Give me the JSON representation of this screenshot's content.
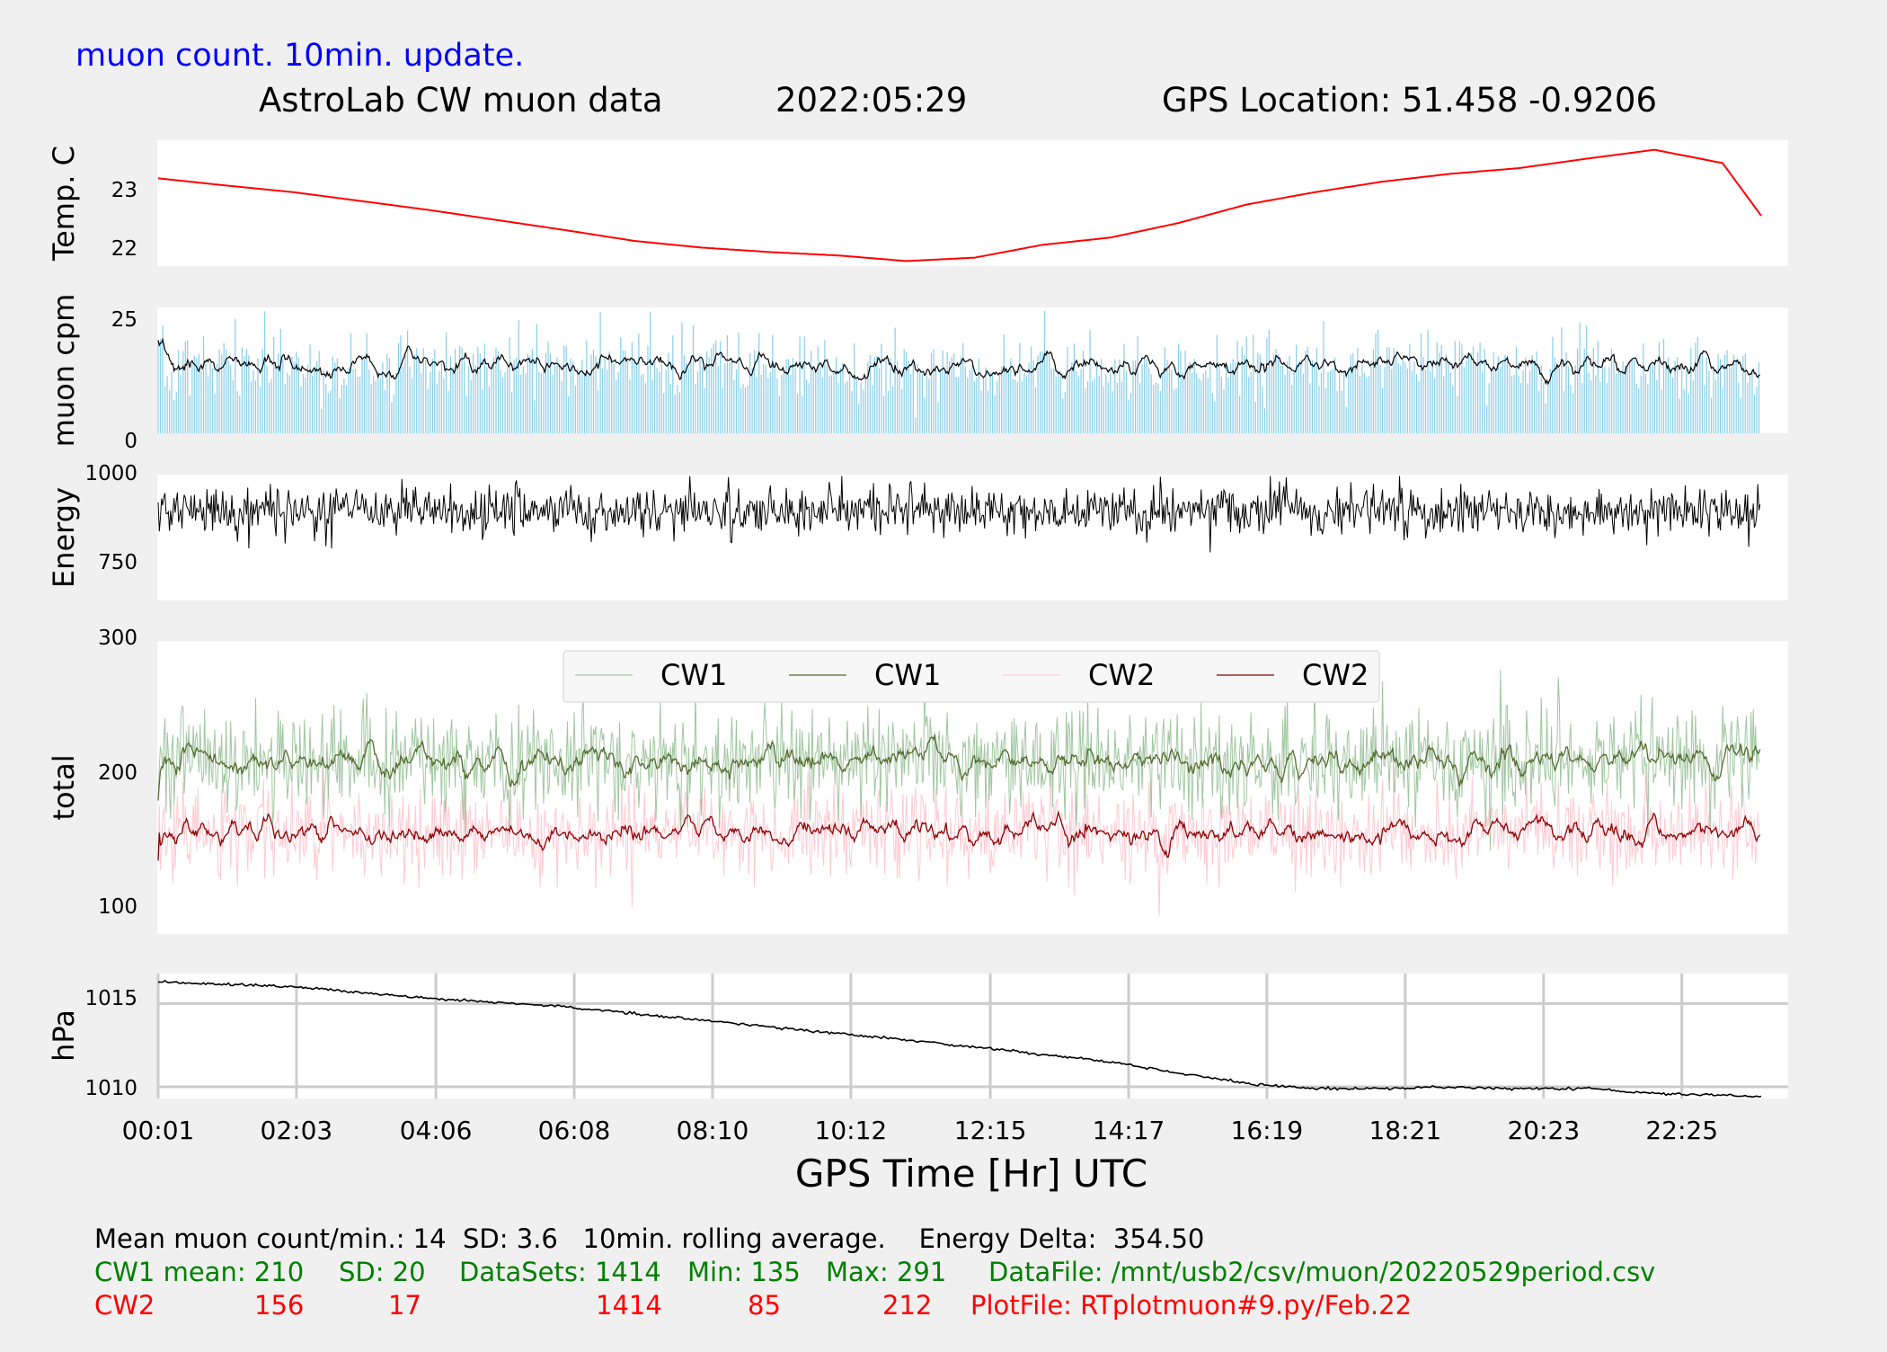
{
  "header": {
    "update_note": "muon count.  10min. update.",
    "title": "AstroLab CW muon data",
    "date": "2022:05:29",
    "location": "GPS Location: 51.458   -0.9206"
  },
  "xaxis": {
    "label": "GPS Time  [Hr] UTC",
    "ticks": [
      "00:01",
      "02:03",
      "04:06",
      "06:08",
      "08:10",
      "10:12",
      "12:15",
      "14:17",
      "16:19",
      "18:21",
      "20:23",
      "22:25"
    ]
  },
  "chart_data": [
    {
      "type": "line",
      "name": "temperature",
      "ylabel": "Temp. C",
      "ylim": [
        21.7,
        23.95
      ],
      "yticks": [
        "22",
        "23"
      ],
      "x_unit": "minutes since 00:01",
      "x": [
        0,
        60,
        120,
        180,
        240,
        300,
        360,
        420,
        480,
        540,
        600,
        660,
        720,
        780,
        840,
        900,
        960,
        1020,
        1080,
        1140,
        1200,
        1260,
        1320,
        1380,
        1414
      ],
      "values": [
        23.27,
        23.14,
        23.02,
        22.86,
        22.7,
        22.52,
        22.34,
        22.15,
        22.03,
        21.95,
        21.89,
        21.79,
        21.85,
        22.08,
        22.21,
        22.47,
        22.8,
        23.02,
        23.21,
        23.35,
        23.45,
        23.62,
        23.78,
        23.54,
        22.6
      ],
      "color": "#ff0000",
      "grid": false
    },
    {
      "type": "bar",
      "name": "muon-cpm",
      "ylabel": "muon cpm",
      "ylim": [
        0,
        26
      ],
      "yticks": [
        "0",
        "25"
      ],
      "mean": 14,
      "sd": 3.6,
      "count": 1414,
      "bar_color": "#87ceeb",
      "rolling_color": "#000000",
      "grid": false
    },
    {
      "type": "line",
      "name": "energy",
      "ylabel": "Energy",
      "ylim": [
        645,
        1005
      ],
      "yticks": [
        "750",
        "1000"
      ],
      "mean": 902,
      "spread": 35,
      "count": 1414,
      "color": "#000000",
      "grid": false
    },
    {
      "type": "line",
      "name": "total",
      "ylabel": "total",
      "ylim": [
        80,
        300
      ],
      "yticks": [
        "100",
        "200",
        "300"
      ],
      "legend": "top-center",
      "series": [
        {
          "name": "CW1",
          "kind": "raw",
          "mean": 210,
          "sd": 20,
          "min": 135,
          "max": 291,
          "color": "#8fbc8f"
        },
        {
          "name": "CW1",
          "kind": "rolling",
          "mean": 210,
          "color": "#556b2f"
        },
        {
          "name": "CW2",
          "kind": "raw",
          "mean": 156,
          "sd": 17,
          "min": 85,
          "max": 212,
          "color": "#ffc0cb"
        },
        {
          "name": "CW2",
          "kind": "rolling",
          "mean": 156,
          "color": "#8b0000"
        }
      ],
      "grid": false
    },
    {
      "type": "line",
      "name": "pressure",
      "ylabel": "hPa",
      "ylim": [
        1009.3,
        1016.8
      ],
      "yticks": [
        "1010",
        "1015"
      ],
      "x_unit": "minutes since 00:01",
      "x": [
        0,
        120,
        240,
        360,
        480,
        600,
        720,
        840,
        960,
        1020,
        1080,
        1140,
        1200,
        1260,
        1320,
        1380,
        1414
      ],
      "values": [
        1016.3,
        1016.0,
        1015.3,
        1014.8,
        1014.0,
        1013.2,
        1012.4,
        1011.5,
        1010.2,
        1009.9,
        1009.9,
        1010.0,
        1009.9,
        1009.9,
        1009.6,
        1009.5,
        1009.4
      ],
      "color": "#000000",
      "grid": true
    }
  ],
  "footer": {
    "stats_line": "Mean muon count/min.: 14  SD: 3.6   10min. rolling average.    Energy Delta:  354.50",
    "cw1": {
      "label": "CW1 mean: 210",
      "sd": "SD: 20",
      "datasets": "DataSets: 1414",
      "min": "Min: 135",
      "max": "Max: 291",
      "file": "DataFile: /mnt/usb2/csv/muon/20220529period.csv"
    },
    "cw2": {
      "label": "CW2",
      "mean": "156",
      "sd": "17",
      "datasets": "1414",
      "min": "85",
      "max": "212",
      "file": "PlotFile: RTplotmuon#9.py/Feb.22"
    },
    "colors": {
      "cw1": "#008000",
      "cw2": "#ff0000",
      "note": "#0000ff"
    }
  }
}
